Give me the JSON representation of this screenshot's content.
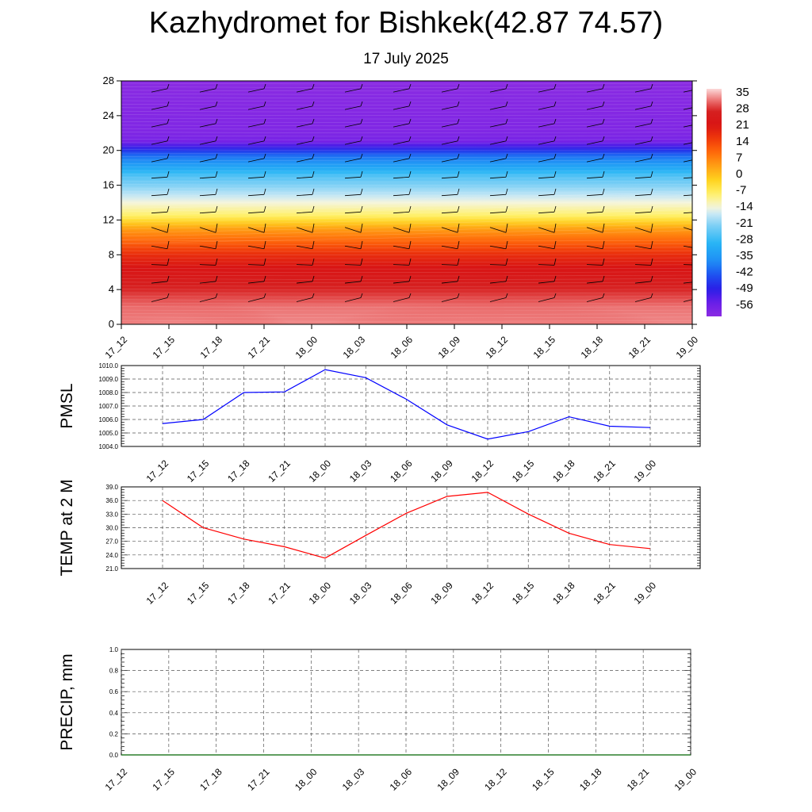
{
  "title": "Kazhydromet for Bishkek(42.87 74.57)",
  "subtitle": "17 July 2025",
  "chart_data": [
    {
      "type": "heatmap",
      "name": "upper-air-cross-section",
      "xticks": [
        "17_12",
        "17_15",
        "17_18",
        "17_21",
        "18_00",
        "18_03",
        "18_06",
        "18_09",
        "18_12",
        "18_15",
        "18_18",
        "18_21",
        "19_00"
      ],
      "ylim": [
        0,
        28
      ],
      "yticks": [
        0,
        4,
        8,
        12,
        16,
        20,
        24,
        28
      ],
      "colorbar_labels": [
        "35",
        "28",
        "21",
        "14",
        "7",
        "0",
        "-7",
        "-14",
        "-21",
        "-28",
        "-35",
        "-42",
        "-49",
        "-56"
      ],
      "colorbar_range": [
        -62,
        38
      ],
      "profile": [
        [
          0,
          34
        ],
        [
          2,
          33
        ],
        [
          5,
          26
        ],
        [
          8,
          18
        ],
        [
          11,
          4
        ],
        [
          12.5,
          -8
        ],
        [
          14,
          -14
        ],
        [
          17,
          -26
        ],
        [
          19.5,
          -42
        ],
        [
          21,
          -58
        ],
        [
          22,
          -60
        ],
        [
          28,
          -62
        ]
      ]
    },
    {
      "type": "line",
      "name": "pmsl",
      "ylabel": "PMSL",
      "categories": [
        "17_12",
        "17_15",
        "17_18",
        "17_21",
        "18_00",
        "18_03",
        "18_06",
        "18_09",
        "18_12",
        "18_15",
        "18_18",
        "18_21",
        "19_00"
      ],
      "values": [
        1005.7,
        1006.0,
        1008.0,
        1008.05,
        1009.7,
        1009.1,
        1007.5,
        1005.6,
        1004.55,
        1005.1,
        1006.2,
        1005.5,
        1005.4
      ],
      "ylim": [
        1004.0,
        1010.0
      ],
      "yticks": [
        "1004.0",
        "1005.0",
        "1006.0",
        "1007.0",
        "1008.0",
        "1009.0",
        "1010.0"
      ],
      "color": "#0000ff"
    },
    {
      "type": "line",
      "name": "temp-2m",
      "ylabel": "TEMP at 2 M",
      "categories": [
        "17_12",
        "17_15",
        "17_18",
        "17_21",
        "18_00",
        "18_03",
        "18_06",
        "18_09",
        "18_12",
        "18_15",
        "18_18",
        "18_21",
        "19_00"
      ],
      "values": [
        36.0,
        30.0,
        27.5,
        25.8,
        23.3,
        28.3,
        33.2,
        36.9,
        37.8,
        33.0,
        28.8,
        26.3,
        25.4
      ],
      "ylim": [
        21.0,
        39.0
      ],
      "yticks": [
        "21.0",
        "24.0",
        "27.0",
        "30.0",
        "33.0",
        "36.0",
        "39.0"
      ],
      "color": "#ff0000"
    },
    {
      "type": "line",
      "name": "precip",
      "ylabel": "PRECIP, mm",
      "categories": [
        "17_12",
        "17_15",
        "17_18",
        "17_21",
        "18_00",
        "18_03",
        "18_06",
        "18_09",
        "18_12",
        "18_15",
        "18_18",
        "18_21",
        "19_00"
      ],
      "values": [
        0,
        0,
        0,
        0,
        0,
        0,
        0,
        0,
        0,
        0,
        0,
        0,
        0
      ],
      "ylim": [
        0.0,
        1.0
      ],
      "yticks": [
        "0.0",
        "0.2",
        "0.4",
        "0.6",
        "0.8",
        "1.0"
      ],
      "color": "#006400"
    }
  ]
}
